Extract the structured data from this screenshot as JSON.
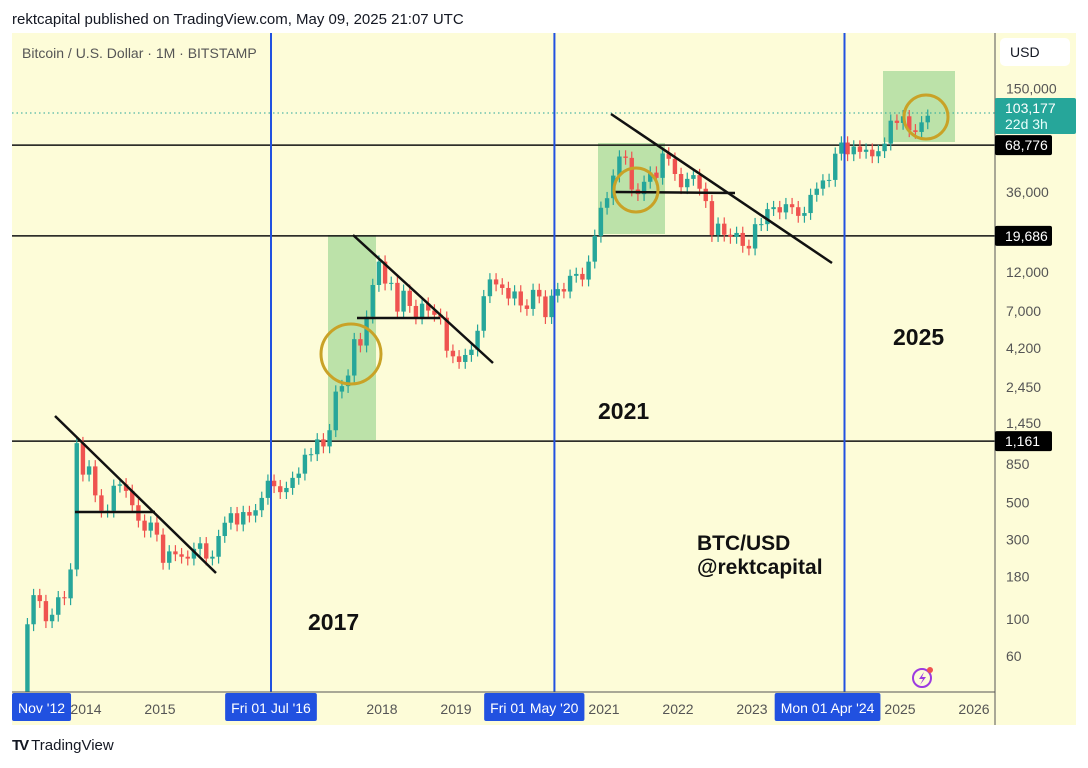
{
  "header": {
    "published": "rektcapital published on TradingView.com, May 09, 2025 21:07 UTC"
  },
  "symbol_line": "Bitcoin / U.S. Dollar · 1M · BITSTAMP",
  "currency_button": "USD",
  "footer": {
    "brand": "TradingView",
    "logo_icon": "tradingview-logo-icon"
  },
  "colors": {
    "background": "#fdfcd8",
    "up": "#26a69a",
    "down": "#ef5350",
    "cycle_line": "#2151e0",
    "highlight_box": "#a6d99a",
    "circle": "#c9a227",
    "level_badge": "#000000",
    "last_price_badge": "#26a69a"
  },
  "chart_data": {
    "type": "candlestick",
    "title": "Bitcoin / U.S. Dollar · 1M · BITSTAMP",
    "y_scale": "log",
    "ylim": [
      30,
      200000
    ],
    "xlim": [
      "2013-02",
      "2026-05"
    ],
    "grid": false,
    "y_ticks": [
      60,
      100,
      180,
      300,
      500,
      850,
      "1,450",
      "2,450",
      "4,200",
      "7,000",
      "12,000",
      "36,000",
      "150,000"
    ],
    "y_tick_values": [
      60,
      100,
      180,
      300,
      500,
      850,
      1450,
      2450,
      4200,
      7000,
      12000,
      36000,
      150000
    ],
    "x_ticks": [
      {
        "label": "2014",
        "year": 2014
      },
      {
        "label": "2015",
        "year": 2015
      },
      {
        "label": "2018",
        "year": 2018
      },
      {
        "label": "2019",
        "year": 2019
      },
      {
        "label": "2021",
        "year": 2021
      },
      {
        "label": "2022",
        "year": 2022
      },
      {
        "label": "2023",
        "year": 2023
      },
      {
        "label": "2025",
        "year": 2025
      },
      {
        "label": "2026",
        "year": 2026
      }
    ],
    "monthly_closes": {
      "start": "2013-01",
      "first_open": 13,
      "values": [
        20,
        33,
        93,
        139,
        128,
        97,
        106,
        135,
        133,
        198,
        1130,
        732,
        820,
        550,
        445,
        445,
        628,
        640,
        585,
        480,
        388,
        338,
        378,
        320,
        217,
        254,
        244,
        236,
        230,
        263,
        284,
        230,
        236,
        314,
        377,
        430,
        368,
        437,
        416,
        448,
        531,
        673,
        624,
        575,
        609,
        700,
        742,
        963,
        970,
        1190,
        1080,
        1350,
        2300,
        2480,
        2870,
        4740,
        4340,
        6460,
        10000,
        13800,
        10200,
        10300,
        6930,
        9240,
        7490,
        6390,
        7730,
        7030,
        6630,
        6370,
        4040,
        3740,
        3460,
        3810,
        4100,
        5320,
        8570,
        10800,
        10080,
        9600,
        8300,
        9150,
        7540,
        7190,
        9350,
        8540,
        6420,
        8630,
        9450,
        9140,
        11350,
        11650,
        10780,
        13800,
        19700,
        29000,
        33100,
        45200,
        58800,
        57700,
        37300,
        35000,
        41500,
        47100,
        43800,
        61300,
        57000,
        46200,
        38500,
        43200,
        45500,
        37700,
        31800,
        19900,
        23300,
        20000,
        19400,
        20500,
        17150,
        16540,
        23130,
        23140,
        28470,
        29250,
        27210,
        30470,
        29230,
        25940,
        26970,
        34650,
        37720,
        42280,
        42580,
        61130,
        71290,
        60640,
        67500,
        62700,
        64600,
        58970,
        63300,
        70200,
        96400,
        93400,
        102400,
        84400,
        82500,
        94200,
        103177
      ]
    },
    "last_price": {
      "value": 103177,
      "label": "103,177",
      "countdown": "22d 3h"
    },
    "horizontal_levels": [
      {
        "value": 68776,
        "label": "68,776"
      },
      {
        "value": 19686,
        "label": "19,686"
      },
      {
        "value": 1161,
        "label": "1,161"
      }
    ],
    "cycle_lines": [
      {
        "date": "2012-11-01",
        "label": "Nov '12",
        "year": 2012.83
      },
      {
        "date": "2016-07-01",
        "label": "Fri 01 Jul '16",
        "year": 2016.5
      },
      {
        "date": "2020-05-01",
        "label": "Fri 01 May '20",
        "year": 2020.33
      },
      {
        "date": "2024-04-01",
        "label": "Mon 01 Apr '24",
        "year": 2024.25
      }
    ],
    "annotations": {
      "y2017": "2017",
      "y2021": "2021",
      "y2025": "2025",
      "pair": "BTC/USD",
      "author": "@rektcapital"
    }
  }
}
